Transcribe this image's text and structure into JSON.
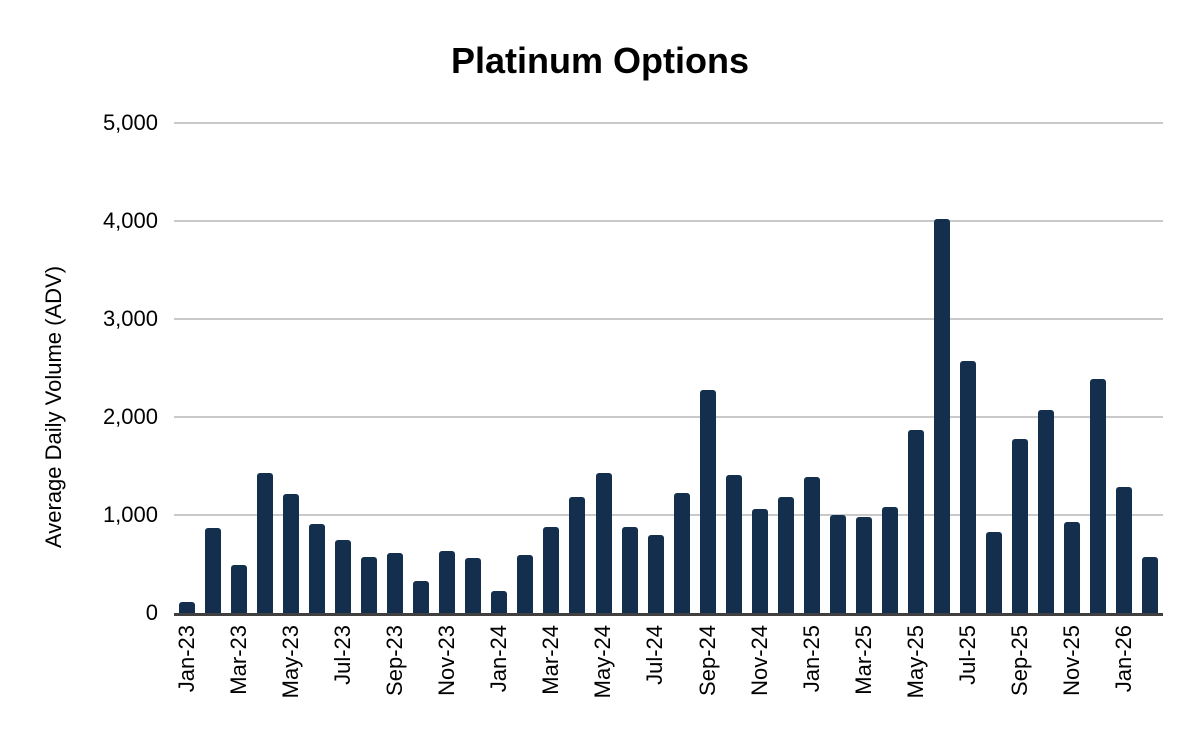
{
  "chart_data": {
    "type": "bar",
    "title": "Platinum Options",
    "xlabel": "",
    "ylabel": "Average Daily Volume (ADV)",
    "ylim": [
      0,
      5000
    ],
    "grid": "horizontal",
    "legend": "none",
    "bar_color": "#142F4D",
    "grid_color": "#c9c9c9",
    "axis_color": "#404040",
    "text_color": "#000000",
    "yticks": [
      {
        "label": "5,000",
        "value": 5000
      },
      {
        "label": "4,000",
        "value": 4000
      },
      {
        "label": "3,000",
        "value": 3000
      },
      {
        "label": "2,000",
        "value": 2000
      },
      {
        "label": "1,000",
        "value": 1000
      },
      {
        "label": "0",
        "value": 0
      }
    ],
    "x_label_step": 2,
    "categories": [
      "Jan-23",
      "Feb-23",
      "Mar-23",
      "Apr-23",
      "May-23",
      "Jun-23",
      "Jul-23",
      "Aug-23",
      "Sep-23",
      "Oct-23",
      "Nov-23",
      "Dec-23",
      "Jan-24",
      "Feb-24",
      "Mar-24",
      "Apr-24",
      "May-24",
      "Jun-24",
      "Jul-24",
      "Aug-24",
      "Sep-24",
      "Oct-24",
      "Nov-24",
      "Dec-24",
      "Jan-25",
      "Feb-25",
      "Mar-25",
      "Apr-25",
      "May-25",
      "Jun-25",
      "Jul-25",
      "Aug-25",
      "Sep-25",
      "Oct-25",
      "Nov-25",
      "Dec-25",
      "Jan-26",
      "Feb-26"
    ],
    "values": [
      110,
      865,
      490,
      1430,
      1210,
      905,
      740,
      575,
      610,
      330,
      635,
      560,
      225,
      595,
      880,
      1185,
      1430,
      880,
      800,
      1225,
      2280,
      1410,
      1060,
      1185,
      1390,
      1005,
      980,
      1080,
      1870,
      4020,
      2570,
      825,
      1780,
      2070,
      930,
      2390,
      1290,
      575
    ]
  }
}
